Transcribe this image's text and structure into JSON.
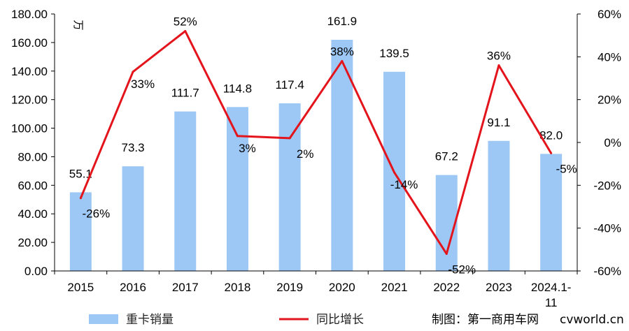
{
  "chart_data": {
    "type": "bar+line",
    "categories": [
      "2015",
      "2016",
      "2017",
      "2018",
      "2019",
      "2020",
      "2021",
      "2022",
      "2023",
      "2024.1-11"
    ],
    "series": [
      {
        "name": "重卡销量",
        "type": "bar",
        "axis": "left",
        "color": "#9dc8f5",
        "values": [
          55.1,
          73.3,
          111.7,
          114.8,
          117.4,
          161.9,
          139.5,
          67.2,
          91.1,
          82.0
        ],
        "labels": [
          "55.1",
          "73.3",
          "111.7",
          "114.8",
          "117.4",
          "161.9",
          "139.5",
          "67.2",
          "91.1",
          "82.0"
        ]
      },
      {
        "name": "同比增长",
        "type": "line",
        "axis": "right",
        "color": "#e3141b",
        "values": [
          -26,
          33,
          52,
          3,
          2,
          38,
          -14,
          -52,
          36,
          -5
        ],
        "labels": [
          "-26%",
          "33%",
          "52%",
          "3%",
          "2%",
          "38%",
          "-14%",
          "-52%",
          "36%",
          "-5%"
        ]
      }
    ],
    "y_left": {
      "range": [
        0,
        180
      ],
      "ticks": [
        "0.00",
        "20.00",
        "40.00",
        "60.00",
        "80.00",
        "100.00",
        "120.00",
        "140.00",
        "160.00",
        "180.00"
      ],
      "unit": "万"
    },
    "y_right": {
      "range": [
        -60,
        60
      ],
      "ticks": [
        "-60%",
        "-40%",
        "-20%",
        "0%",
        "20%",
        "40%",
        "60%"
      ]
    },
    "grid": false,
    "legend": "bottom"
  },
  "credit": "制图：第一商用车网",
  "watermark": "cvworld.cn"
}
